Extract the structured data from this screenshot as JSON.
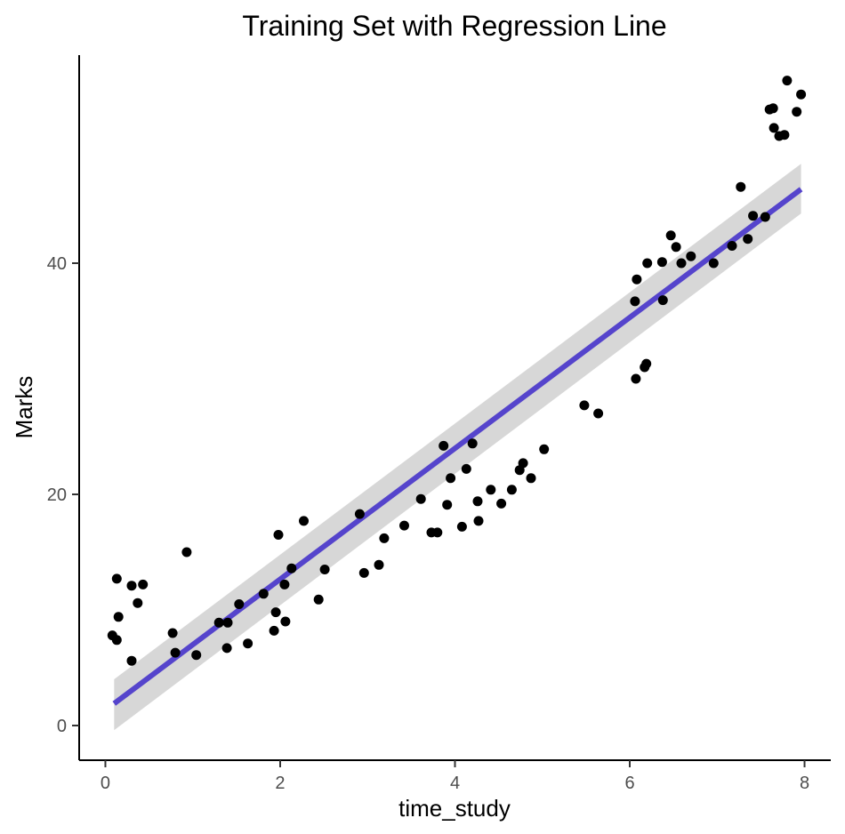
{
  "chart_data": {
    "type": "scatter",
    "title": "Training Set with Regression Line",
    "xlabel": "time_study",
    "ylabel": "Marks",
    "xlim": [
      -0.3,
      8.3
    ],
    "ylim": [
      -3.0,
      58.0
    ],
    "xticks": [
      0,
      2,
      4,
      6,
      8
    ],
    "yticks": [
      0,
      20,
      40
    ],
    "xtick_labels": [
      "0",
      "2",
      "4",
      "6",
      "8"
    ],
    "ytick_labels": [
      "0",
      "20",
      "40"
    ],
    "grid": false,
    "legend": "none",
    "colors": {
      "points": "#000000",
      "line": "#5544cc",
      "band": "#d3d3d3"
    },
    "regression": {
      "x": [
        0.1,
        7.96
      ],
      "y": [
        1.9,
        46.4
      ],
      "ci_lower": [
        -0.4,
        44.3
      ],
      "ci_upper": [
        4.0,
        48.6
      ]
    },
    "points": [
      [
        0.08,
        7.8
      ],
      [
        0.13,
        12.7
      ],
      [
        0.13,
        7.4
      ],
      [
        0.15,
        9.4
      ],
      [
        0.3,
        5.6
      ],
      [
        0.3,
        12.1
      ],
      [
        0.37,
        10.6
      ],
      [
        0.43,
        12.2
      ],
      [
        0.77,
        8.0
      ],
      [
        0.8,
        6.3
      ],
      [
        0.93,
        15.0
      ],
      [
        1.04,
        6.1
      ],
      [
        1.3,
        8.9
      ],
      [
        1.39,
        6.7
      ],
      [
        1.4,
        8.9
      ],
      [
        1.53,
        10.5
      ],
      [
        1.63,
        7.1
      ],
      [
        1.81,
        11.4
      ],
      [
        1.93,
        8.2
      ],
      [
        1.95,
        9.8
      ],
      [
        1.98,
        16.5
      ],
      [
        2.05,
        12.2
      ],
      [
        2.06,
        9.0
      ],
      [
        2.13,
        13.6
      ],
      [
        2.27,
        17.7
      ],
      [
        2.44,
        10.9
      ],
      [
        2.51,
        13.5
      ],
      [
        2.91,
        18.3
      ],
      [
        2.96,
        13.2
      ],
      [
        3.13,
        13.9
      ],
      [
        3.19,
        16.2
      ],
      [
        3.42,
        17.3
      ],
      [
        3.61,
        19.6
      ],
      [
        3.73,
        16.7
      ],
      [
        3.8,
        16.7
      ],
      [
        3.87,
        24.2
      ],
      [
        3.91,
        19.1
      ],
      [
        3.95,
        21.4
      ],
      [
        4.08,
        17.2
      ],
      [
        4.13,
        22.2
      ],
      [
        4.2,
        24.4
      ],
      [
        4.26,
        19.4
      ],
      [
        4.27,
        17.7
      ],
      [
        4.41,
        20.4
      ],
      [
        4.53,
        19.2
      ],
      [
        4.65,
        20.4
      ],
      [
        4.74,
        22.1
      ],
      [
        4.78,
        22.7
      ],
      [
        4.87,
        21.4
      ],
      [
        5.02,
        23.9
      ],
      [
        5.48,
        27.7
      ],
      [
        5.64,
        27.0
      ],
      [
        6.06,
        36.7
      ],
      [
        6.07,
        30.0
      ],
      [
        6.08,
        38.6
      ],
      [
        6.17,
        31.0
      ],
      [
        6.19,
        31.3
      ],
      [
        6.2,
        40.0
      ],
      [
        6.37,
        40.1
      ],
      [
        6.38,
        36.8
      ],
      [
        6.47,
        42.4
      ],
      [
        6.53,
        41.4
      ],
      [
        6.59,
        40.0
      ],
      [
        6.7,
        40.6
      ],
      [
        6.96,
        40.0
      ],
      [
        7.17,
        41.5
      ],
      [
        7.27,
        46.6
      ],
      [
        7.35,
        42.1
      ],
      [
        7.41,
        44.1
      ],
      [
        7.55,
        44.0
      ],
      [
        7.6,
        53.3
      ],
      [
        7.64,
        53.4
      ],
      [
        7.65,
        51.7
      ],
      [
        7.71,
        51.0
      ],
      [
        7.77,
        51.1
      ],
      [
        7.8,
        55.8
      ],
      [
        7.91,
        53.1
      ],
      [
        7.96,
        54.6
      ]
    ]
  }
}
